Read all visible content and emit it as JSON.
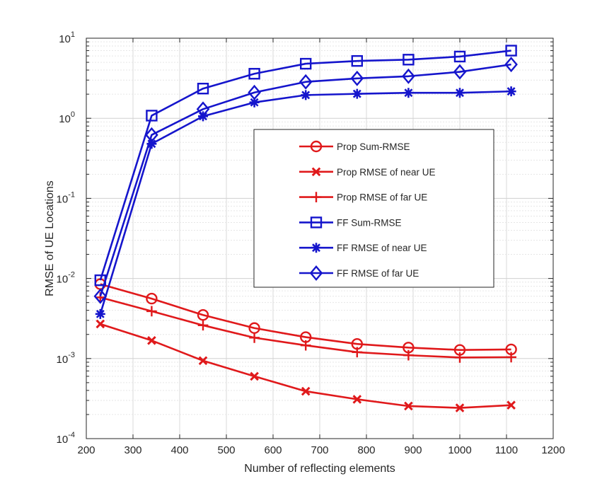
{
  "chart_data": {
    "type": "line",
    "title": "",
    "xlabel": "Number of reflecting elements",
    "ylabel": "RMSE of UE Locations",
    "xlim": [
      200,
      1200
    ],
    "ylim": [
      0.0001,
      10
    ],
    "yscale": "log",
    "grid": true,
    "legend_position": "center-right",
    "xticks": [
      "200",
      "300",
      "400",
      "500",
      "600",
      "700",
      "800",
      "900",
      "1000",
      "1100",
      "1200"
    ],
    "yticks": [
      {
        "base": "10",
        "exp": "-4"
      },
      {
        "base": "10",
        "exp": "-3"
      },
      {
        "base": "10",
        "exp": "-2"
      },
      {
        "base": "10",
        "exp": "-1"
      },
      {
        "base": "10",
        "exp": "0"
      },
      {
        "base": "10",
        "exp": "1"
      }
    ],
    "x": [
      230,
      340,
      450,
      560,
      670,
      780,
      890,
      1000,
      1110
    ],
    "series": [
      {
        "name": "Prop Sum-RMSE",
        "color": "#e0191b",
        "marker": "circle",
        "values": [
          0.0085,
          0.0056,
          0.0035,
          0.0024,
          0.00185,
          0.00152,
          0.00137,
          0.00128,
          0.0013
        ]
      },
      {
        "name": "Prop RMSE of near UE",
        "color": "#e0191b",
        "marker": "x",
        "values": [
          0.0027,
          0.00168,
          0.00094,
          0.0006,
          0.00039,
          0.00031,
          0.000255,
          0.000242,
          0.000262
        ]
      },
      {
        "name": "Prop RMSE of far UE",
        "color": "#e0191b",
        "marker": "plus",
        "values": [
          0.0058,
          0.0039,
          0.0026,
          0.00182,
          0.00146,
          0.0012,
          0.0011,
          0.00103,
          0.00104
        ]
      },
      {
        "name": "FF Sum-RMSE",
        "color": "#1515cc",
        "marker": "square",
        "values": [
          0.0095,
          1.08,
          2.35,
          3.6,
          4.8,
          5.2,
          5.4,
          5.9,
          7.0
        ]
      },
      {
        "name": "FF RMSE of near UE",
        "color": "#1515cc",
        "marker": "star",
        "values": [
          0.0036,
          0.48,
          1.06,
          1.58,
          1.95,
          2.02,
          2.08,
          2.08,
          2.17
        ]
      },
      {
        "name": "FF RMSE of far UE",
        "color": "#1515cc",
        "marker": "diamond",
        "values": [
          0.006,
          0.62,
          1.3,
          2.1,
          2.85,
          3.15,
          3.35,
          3.8,
          4.7
        ]
      }
    ]
  }
}
